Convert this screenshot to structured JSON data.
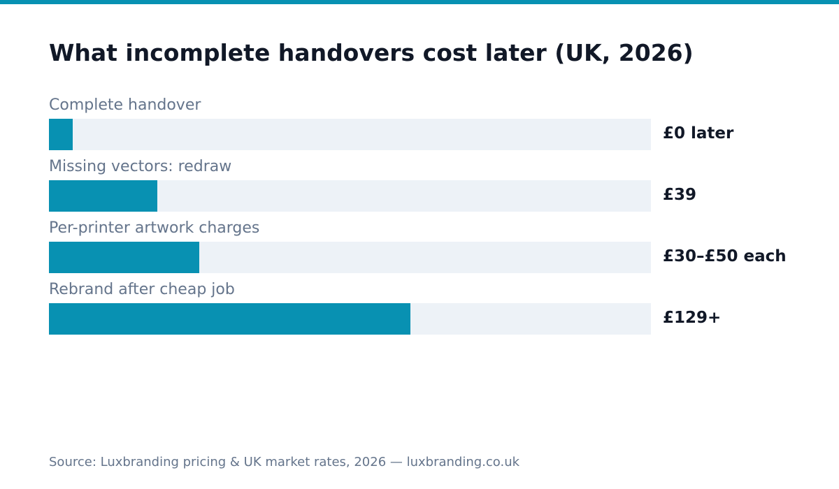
{
  "colors": {
    "accent": "#0891b2",
    "track": "#edf2f7",
    "title": "#111827",
    "muted": "#64748b"
  },
  "chart_data": {
    "type": "bar",
    "orientation": "horizontal",
    "title": "What incomplete handovers cost later (UK, 2026)",
    "categories": [
      "Complete handover",
      "Missing vectors: redraw",
      "Per-printer artwork charges",
      "Rebrand after cheap job"
    ],
    "values": [
      0,
      39,
      40,
      129
    ],
    "value_labels": [
      "£0 later",
      "£39",
      "£30–£50 each",
      "£129+"
    ],
    "fill_fractions": [
      0.04,
      0.18,
      0.25,
      0.6
    ],
    "source": "Source: Luxbranding pricing & UK market rates, 2026 — luxbranding.co.uk"
  }
}
